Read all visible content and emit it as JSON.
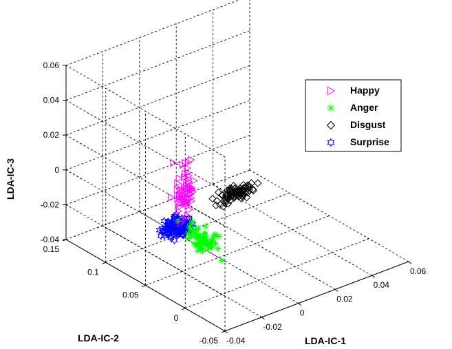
{
  "chart_data": {
    "type": "scatter3d",
    "xlabel": "LDA-IC-1",
    "ylabel": "LDA-IC-2",
    "zlabel": "LDA-IC-3",
    "xlim": [
      -0.04,
      0.06
    ],
    "ylim": [
      -0.05,
      0.15
    ],
    "zlim": [
      -0.04,
      0.06
    ],
    "xticks": [
      "-0.04",
      "-0.02",
      "0",
      "0.02",
      "0.04",
      "0.06"
    ],
    "yticks": [
      "-0.05",
      "0",
      "0.05",
      "0.1",
      "0.15"
    ],
    "zticks": [
      "-0.04",
      "-0.02",
      "0",
      "0.02",
      "0.04",
      "0.06"
    ],
    "grid": true,
    "legend_position": "top-right",
    "series": [
      {
        "name": "Happy",
        "marker": "triangle-right",
        "color": "#ff00ff",
        "center": [
          -0.008,
          0.074,
          -0.006
        ],
        "spread": [
          0.004,
          0.008,
          0.016
        ],
        "count": 60
      },
      {
        "name": "Anger",
        "marker": "asterisk",
        "color": "#00ff00",
        "center": [
          -0.013,
          0.04,
          -0.022
        ],
        "spread": [
          0.005,
          0.02,
          0.006
        ],
        "count": 70
      },
      {
        "name": "Disgust",
        "marker": "diamond",
        "color": "#000000",
        "center": [
          0.014,
          0.06,
          -0.011
        ],
        "spread": [
          0.01,
          0.005,
          0.005
        ],
        "count": 80
      },
      {
        "name": "Surprise",
        "marker": "hexagram",
        "color": "#0000ff",
        "center": [
          -0.023,
          0.049,
          -0.013
        ],
        "spread": [
          0.008,
          0.009,
          0.004
        ],
        "count": 120
      }
    ]
  }
}
